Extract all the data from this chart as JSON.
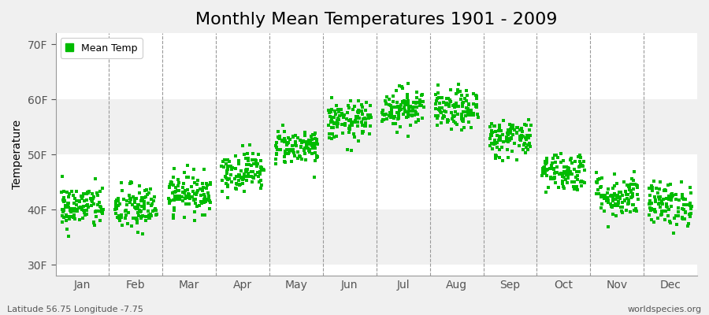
{
  "title": "Monthly Mean Temperatures 1901 - 2009",
  "ylabel": "Temperature",
  "xlabel_labels": [
    "Jan",
    "Feb",
    "Mar",
    "Apr",
    "May",
    "Jun",
    "Jul",
    "Aug",
    "Sep",
    "Oct",
    "Nov",
    "Dec"
  ],
  "ytick_labels": [
    "30F",
    "40F",
    "50F",
    "60F",
    "70F"
  ],
  "ytick_values": [
    30,
    40,
    50,
    60,
    70
  ],
  "ylim": [
    28,
    72
  ],
  "legend_label": "Mean Temp",
  "marker_color": "#00bb00",
  "background_color": "#f0f0f0",
  "plot_bg_color": "#ffffff",
  "band_color_light": "#f0f0f0",
  "band_color_white": "#ffffff",
  "footer_left": "Latitude 56.75 Longitude -7.75",
  "footer_right": "worldspecies.org",
  "title_fontsize": 16,
  "axis_fontsize": 10,
  "monthly_means": [
    40.5,
    40.2,
    43.0,
    47.0,
    51.5,
    56.0,
    58.5,
    58.0,
    53.0,
    47.0,
    42.5,
    41.0
  ],
  "monthly_stds": [
    2.0,
    2.2,
    1.8,
    1.8,
    1.6,
    1.8,
    1.8,
    1.8,
    1.8,
    1.8,
    2.0,
    2.0
  ],
  "n_years": 109,
  "seed": 42
}
